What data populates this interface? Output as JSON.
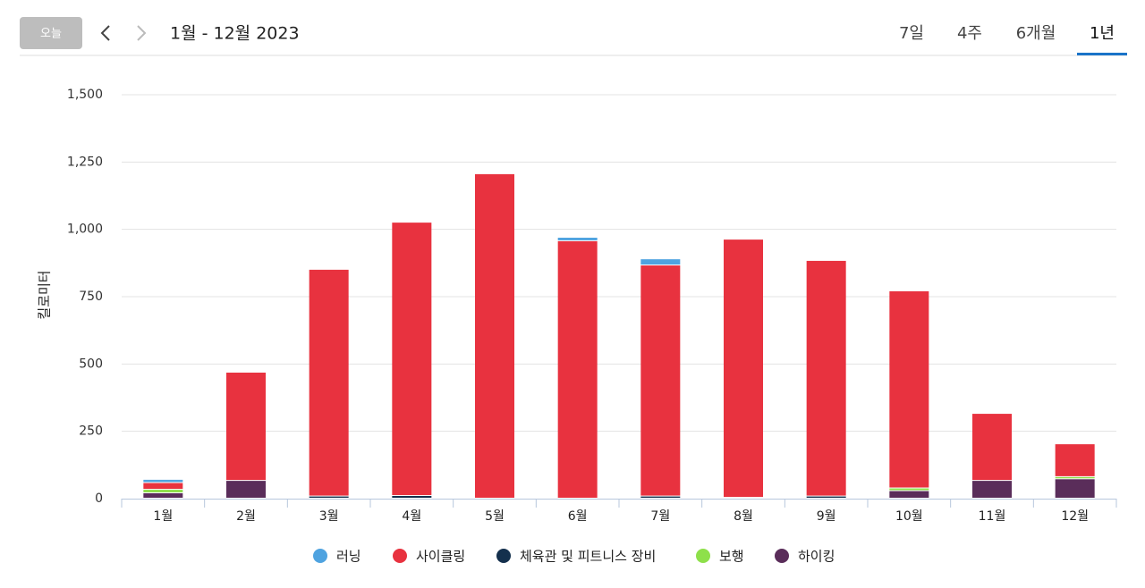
{
  "header": {
    "today": "오늘",
    "range": "1월 - 12월 2023",
    "tabs": [
      "7일",
      "4주",
      "6개월",
      "1년"
    ]
  },
  "chart_data": {
    "type": "stacked-bar",
    "y_label": "킬로미터",
    "categories": [
      "1월",
      "2월",
      "3월",
      "4월",
      "5월",
      "6월",
      "7월",
      "8월",
      "9월",
      "10월",
      "11월",
      "12월"
    ],
    "series": [
      {
        "name": "하이킹",
        "color": "#5a2d5a",
        "values": [
          20,
          66,
          0,
          0,
          0,
          0,
          0,
          0,
          0,
          28,
          66,
          72
        ]
      },
      {
        "name": "체육관 및 피트니스 장비",
        "color": "#14304d",
        "values": [
          0,
          0,
          8,
          10,
          0,
          0,
          8,
          3,
          8,
          0,
          0,
          0
        ]
      },
      {
        "name": "보행",
        "color": "#8ee04a",
        "values": [
          13,
          0,
          0,
          0,
          0,
          0,
          0,
          0,
          0,
          10,
          0,
          8
        ]
      },
      {
        "name": "사이클링",
        "color": "#e8323f",
        "values": [
          25,
          402,
          842,
          1015,
          1205,
          956,
          858,
          959,
          875,
          732,
          249,
          122
        ]
      },
      {
        "name": "러닝",
        "color": "#4fa3e0",
        "values": [
          12,
          0,
          0,
          0,
          0,
          13,
          23,
          0,
          0,
          0,
          0,
          0
        ]
      }
    ],
    "legend_order": [
      4,
      3,
      1,
      2,
      0
    ],
    "ylim": [
      0,
      1500
    ],
    "yticks": [
      0,
      250,
      500,
      750,
      {
        "value": 1000,
        "label": "1,000"
      },
      {
        "value": 1250,
        "label": "1,250"
      },
      {
        "value": 1500,
        "label": "1,500"
      }
    ],
    "grid": true
  }
}
